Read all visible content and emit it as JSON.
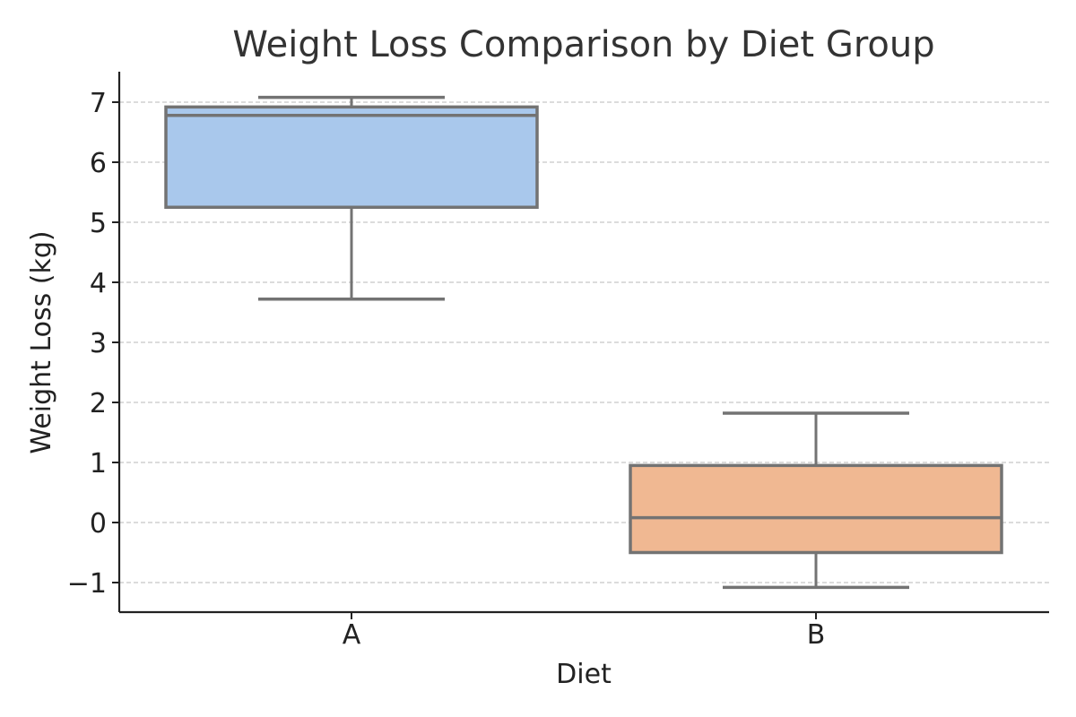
{
  "chart_data": {
    "type": "box",
    "title": "Weight Loss Comparison by Diet Group",
    "xlabel": "Diet",
    "ylabel": "Weight Loss (kg)",
    "ylim": [
      -1.5,
      7.5
    ],
    "y_ticks": [
      -1,
      0,
      1,
      2,
      3,
      4,
      5,
      6,
      7
    ],
    "y_tick_labels": [
      "−1",
      "0",
      "1",
      "2",
      "3",
      "4",
      "5",
      "6",
      "7"
    ],
    "grid": "y-dashed",
    "categories": [
      "A",
      "B"
    ],
    "boxes": [
      {
        "category": "A",
        "whisker_low": 3.72,
        "q1": 5.25,
        "median": 6.78,
        "q3": 6.92,
        "whisker_high": 7.08,
        "color": "#a9c8ec"
      },
      {
        "category": "B",
        "whisker_low": -1.08,
        "q1": -0.5,
        "median": 0.08,
        "q3": 0.95,
        "whisker_high": 1.82,
        "color": "#f0b892"
      }
    ],
    "colors": {
      "box_edge": "#737373",
      "grid": "#c8c8c8",
      "axis": "#222222"
    }
  }
}
